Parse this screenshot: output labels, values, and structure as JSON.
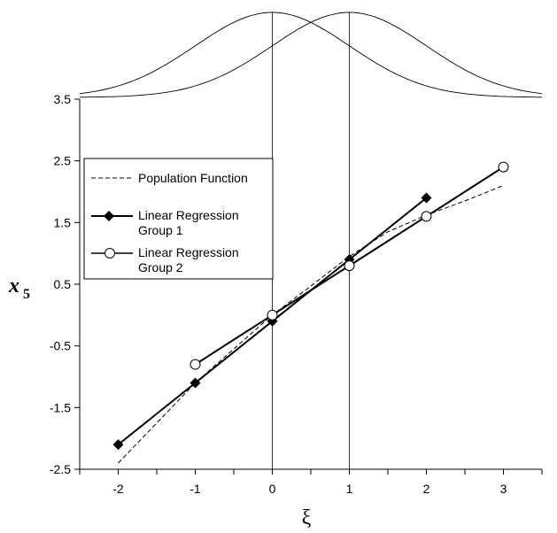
{
  "chart_data": {
    "type": "line",
    "xlabel": "ξ",
    "ylabel": "x",
    "ylabel_subscript": "5",
    "xlim": [
      -2.5,
      3.5
    ],
    "ylim": [
      -2.5,
      3.5
    ],
    "x_ticks": [
      -2,
      -1,
      0,
      1,
      2,
      3
    ],
    "x_tick_labels": [
      "-2",
      "-1",
      "0",
      "1",
      "2",
      "3"
    ],
    "y_ticks": [
      -2.5,
      -1.5,
      -0.5,
      0.5,
      1.5,
      2.5,
      3.5
    ],
    "y_tick_labels": [
      "-2.5",
      "-1.5",
      "-0.5",
      "0.5",
      "1.5",
      "2.5",
      "3.5"
    ],
    "grid": false,
    "vertical_reference_lines": [
      0,
      1
    ],
    "density_curves": [
      {
        "mean": 0,
        "sd": 1
      },
      {
        "mean": 1,
        "sd": 1
      }
    ],
    "legend_position": "upper-left",
    "series": [
      {
        "name": "Population Function",
        "style": "dashed",
        "marker": "none",
        "x": [
          -2,
          -1.5,
          -1,
          -0.5,
          0,
          0.5,
          1,
          1.5,
          2,
          2.5,
          3
        ],
        "y": [
          -2.4,
          -1.75,
          -1.1,
          -0.55,
          0.0,
          0.47,
          0.95,
          1.35,
          1.62,
          1.85,
          2.1
        ]
      },
      {
        "name": "Linear Regression Group 1",
        "style": "solid",
        "marker": "diamond",
        "x": [
          -2,
          -1,
          0,
          1,
          2
        ],
        "y": [
          -2.1,
          -1.1,
          -0.1,
          0.9,
          1.9
        ]
      },
      {
        "name": "Linear Regression Group 2",
        "style": "solid",
        "marker": "circle-open",
        "x": [
          -1,
          0,
          1,
          2,
          3
        ],
        "y": [
          -0.8,
          0.0,
          0.8,
          1.6,
          2.4
        ]
      }
    ],
    "legend": {
      "items": [
        {
          "line1": "Population Function",
          "line2": ""
        },
        {
          "line1": "Linear Regression",
          "line2": "Group 1"
        },
        {
          "line1": "Linear Regression",
          "line2": "Group 2"
        }
      ]
    }
  }
}
